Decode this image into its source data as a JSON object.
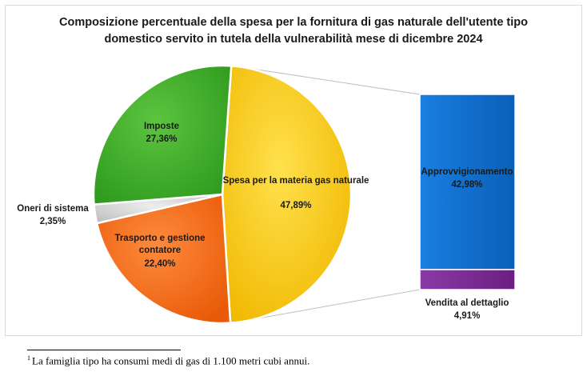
{
  "chart_data": {
    "type": "bar-of-pie",
    "title": "Composizione percentuale della spesa per la fornitura di gas naturale dell'utente tipo domestico servito in tutela della vulnerabilità mese di dicembre 2024",
    "pie": {
      "slices": [
        {
          "label": "Spesa per la materia gas naturale",
          "value": 47.89,
          "value_label": "47,89%",
          "color": "#ffcc00"
        },
        {
          "label": "Trasporto e gestione contatore",
          "value": 22.4,
          "value_label": "22,40%",
          "color": "#ff6a13"
        },
        {
          "label": "Oneri di sistema",
          "value": 2.35,
          "value_label": "2,35%",
          "color": "#d0d0d0"
        },
        {
          "label": "Imposte",
          "value": 27.36,
          "value_label": "27,36%",
          "color": "#3fae2a"
        }
      ]
    },
    "bar": {
      "segments": [
        {
          "label": "Approvvigionamento",
          "value": 42.98,
          "value_label": "42,98%",
          "color": "#0a6ed1"
        },
        {
          "label": "Vendita al dettaglio",
          "value": 4.91,
          "value_label": "4,91%",
          "color": "#7a2b93"
        }
      ]
    }
  },
  "footnote": {
    "marker": "1",
    "text": "La famiglia tipo ha consumi medi di gas di 1.100 metri cubi annui."
  }
}
